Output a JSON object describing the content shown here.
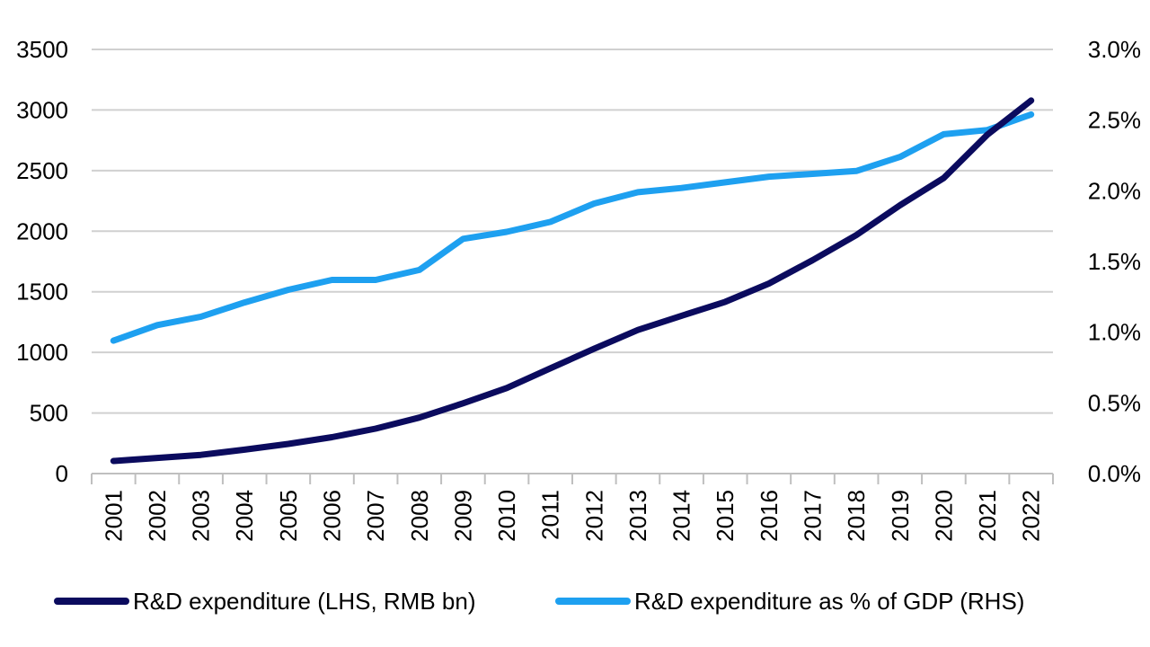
{
  "chart_data": {
    "type": "line",
    "categories": [
      "2001",
      "2002",
      "2003",
      "2004",
      "2005",
      "2006",
      "2007",
      "2008",
      "2009",
      "2010",
      "2011",
      "2012",
      "2013",
      "2014",
      "2015",
      "2016",
      "2017",
      "2018",
      "2019",
      "2020",
      "2021",
      "2022"
    ],
    "left_axis": {
      "ylim": [
        0,
        3500
      ],
      "ticks": [
        0,
        500,
        1000,
        1500,
        2000,
        2500,
        3000,
        3500
      ],
      "tick_labels": [
        "0",
        "500",
        "1000",
        "1500",
        "2000",
        "2500",
        "3000",
        "3500"
      ]
    },
    "right_axis": {
      "ylim": [
        0,
        3.0
      ],
      "ticks": [
        0,
        0.5,
        1.0,
        1.5,
        2.0,
        2.5,
        3.0
      ],
      "tick_labels": [
        "0.0%",
        "0.5%",
        "1.0%",
        "1.5%",
        "2.0%",
        "2.5%",
        "3.0%"
      ]
    },
    "grid": true,
    "legend_position": "bottom",
    "series": [
      {
        "name": "R&D expenditure (LHS, RMB bn)",
        "axis": "left",
        "color": "#0b0b5e",
        "values": [
          104,
          129,
          154,
          197,
          245,
          300,
          371,
          462,
          580,
          706,
          869,
          1030,
          1185,
          1302,
          1417,
          1568,
          1761,
          1968,
          2214,
          2439,
          2796,
          3078
        ]
      },
      {
        "name": "R&D expenditure as % of GDP (RHS)",
        "axis": "right",
        "color": "#1ea0f0",
        "values": [
          0.94,
          1.05,
          1.11,
          1.21,
          1.3,
          1.37,
          1.37,
          1.44,
          1.66,
          1.71,
          1.78,
          1.91,
          1.99,
          2.02,
          2.06,
          2.1,
          2.12,
          2.14,
          2.24,
          2.4,
          2.43,
          2.54
        ]
      }
    ]
  }
}
